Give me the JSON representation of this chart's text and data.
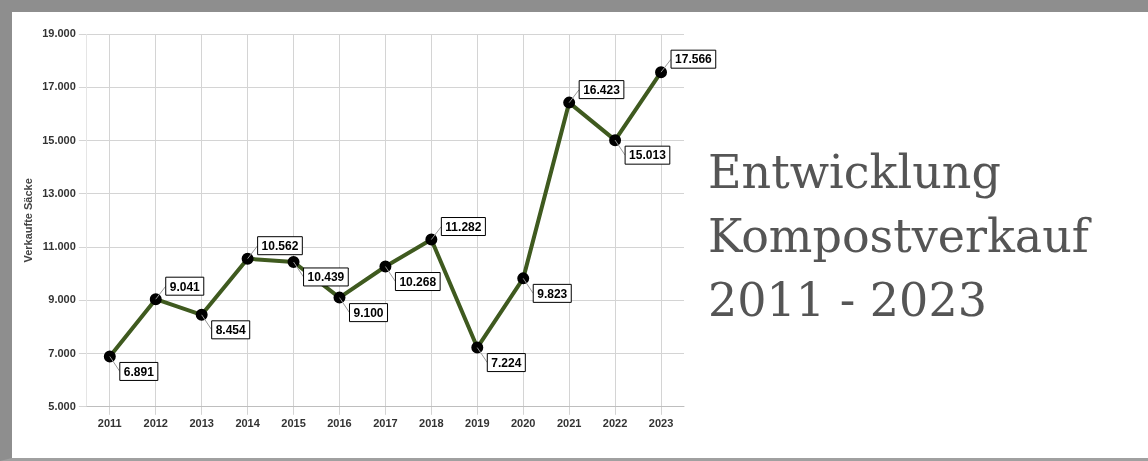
{
  "chart_data": {
    "type": "line",
    "title": "Entwicklung Kompostverkauf 2011 - 2023",
    "ylabel": "Verkaufte Säcke",
    "categories": [
      "2011",
      "2012",
      "2013",
      "2014",
      "2015",
      "2016",
      "2017",
      "2018",
      "2019",
      "2020",
      "2021",
      "2022",
      "2023"
    ],
    "series": [
      {
        "color": "#3f5a1f",
        "values": [
          6891,
          9041,
          8454,
          10562,
          10439,
          9100,
          10268,
          11282,
          7224,
          9823,
          16423,
          15013,
          17566
        ],
        "value_labels": [
          "6.891",
          "9.041",
          "8.454",
          "10.562",
          "10.439",
          "9.100",
          "10.268",
          "11.282",
          "7.224",
          "9.823",
          "16.423",
          "15.013",
          "17.566"
        ]
      }
    ],
    "ylim": [
      5000,
      19000
    ],
    "yticks": [
      {
        "value": 5000,
        "label": "5.000"
      },
      {
        "value": 7000,
        "label": "7.000"
      },
      {
        "value": 9000,
        "label": "9.000"
      },
      {
        "value": 11000,
        "label": "11.000"
      },
      {
        "value": 13000,
        "label": "13.000"
      },
      {
        "value": 15000,
        "label": "15.000"
      },
      {
        "value": 17000,
        "label": "17.000"
      },
      {
        "value": 19000,
        "label": "19.000"
      }
    ],
    "grid": true,
    "legend": false,
    "marker": "circle",
    "line_style": "solid"
  }
}
